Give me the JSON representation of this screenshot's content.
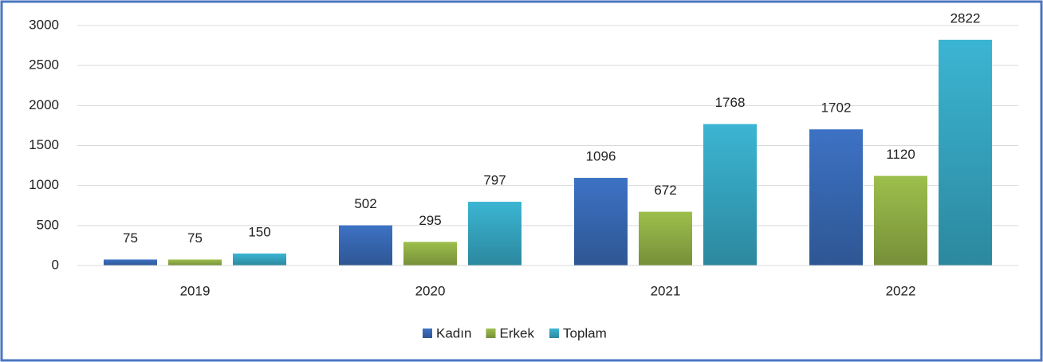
{
  "chart_data": {
    "type": "bar",
    "categories": [
      "2019",
      "2020",
      "2021",
      "2022"
    ],
    "series": [
      {
        "name": "Kadın",
        "color": "#3d72c4",
        "values": [
          75,
          502,
          1096,
          1702
        ]
      },
      {
        "name": "Erkek",
        "color": "#9dbf4c",
        "values": [
          75,
          295,
          672,
          1120
        ]
      },
      {
        "name": "Toplam",
        "color": "#3bb5d3",
        "values": [
          150,
          797,
          1768,
          2822
        ]
      }
    ],
    "ylim": [
      0,
      3000
    ],
    "yticks": [
      0,
      500,
      1000,
      1500,
      2000,
      2500,
      3000
    ],
    "grid": true,
    "legend": "bottom"
  }
}
